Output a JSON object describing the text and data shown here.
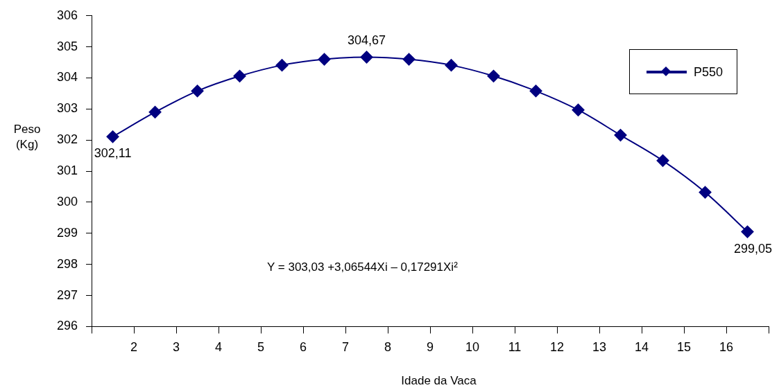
{
  "chart_data": {
    "type": "line",
    "xlabel": "Idade da Vaca",
    "ylabel": "Peso (Kg)",
    "x": [
      1.5,
      2.5,
      3.5,
      4.5,
      5.5,
      6.5,
      7.5,
      8.5,
      9.5,
      10.5,
      11.5,
      12.5,
      13.5,
      14.5,
      15.5,
      16.5
    ],
    "xlim": [
      1,
      17
    ],
    "xticks": [
      {
        "value": 1,
        "label": null
      },
      2,
      3,
      4,
      5,
      6,
      7,
      8,
      9,
      10,
      11,
      12,
      13,
      14,
      15,
      16,
      {
        "value": 17,
        "label": null
      }
    ],
    "ylim": [
      296,
      306
    ],
    "yticks": [
      296,
      297,
      298,
      299,
      300,
      301,
      302,
      303,
      304,
      305,
      306
    ],
    "series": [
      {
        "name": "P550",
        "color": "#000080",
        "values": [
          302.11,
          302.9,
          303.58,
          304.06,
          304.41,
          304.6,
          304.67,
          304.6,
          304.41,
          304.06,
          303.58,
          302.97,
          302.16,
          301.34,
          300.32,
          299.05
        ],
        "value_labels": [
          "302,11",
          null,
          null,
          null,
          null,
          null,
          "304,67",
          null,
          null,
          null,
          null,
          null,
          null,
          null,
          null,
          "299,05"
        ]
      }
    ],
    "annotations": [
      "Y = 303,03 +3,06544Xi – 0,17291Xi²"
    ],
    "marker": "diamond",
    "line_style": "solid",
    "grid": false,
    "legend": "top right"
  }
}
